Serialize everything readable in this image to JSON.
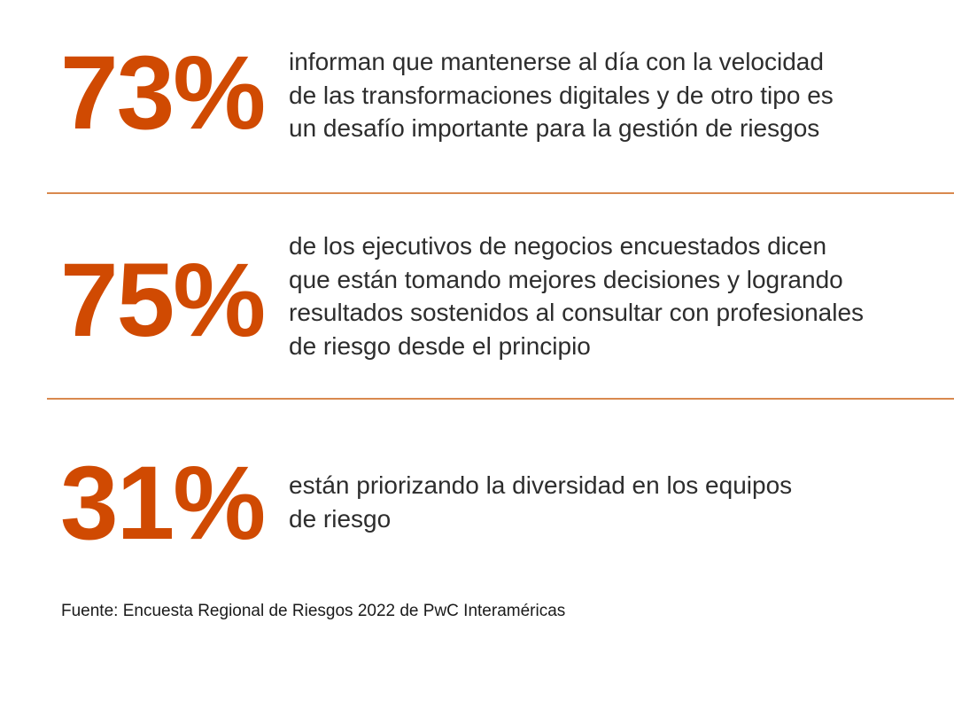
{
  "colors": {
    "accent": "#d04a02",
    "divider": "#d9894e",
    "text": "#2d2d2d"
  },
  "stats": [
    {
      "value": "73%",
      "text": "informan que mantenerse al día con la velocidad\nde las transformaciones digitales y de otro tipo es\nun desafío importante para la gestión de riesgos"
    },
    {
      "value": "75%",
      "text": "de los ejecutivos de negocios encuestados dicen\nque están tomando mejores decisiones y logrando\nresultados sostenidos al consultar con profesionales\nde riesgo desde el principio"
    },
    {
      "value": "31%",
      "text": "están priorizando la diversidad en los equipos\nde riesgo"
    }
  ],
  "source": "Fuente: Encuesta Regional de Riesgos 2022 de PwC Interaméricas"
}
